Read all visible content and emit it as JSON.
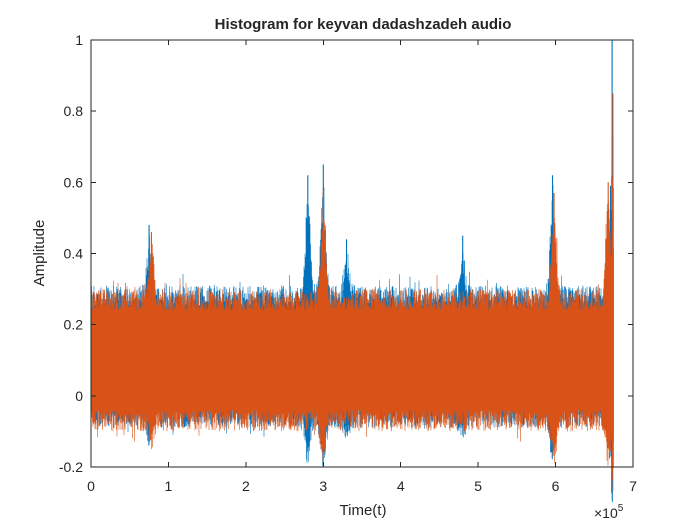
{
  "chart_data": {
    "type": "line",
    "title": "Histogram for keyvan dadashzadeh audio",
    "xlabel": "Time(t)",
    "ylabel": "Amplitude",
    "x_exponent_label": "×10",
    "x_exponent_power": "5",
    "xlim": [
      0,
      700000
    ],
    "ylim": [
      -0.2,
      1
    ],
    "x_ticks": [
      0,
      100000,
      200000,
      300000,
      400000,
      500000,
      600000,
      700000
    ],
    "x_tick_labels": [
      "0",
      "1",
      "2",
      "3",
      "4",
      "5",
      "6",
      "7"
    ],
    "y_ticks": [
      -0.2,
      0,
      0.2,
      0.4,
      0.6,
      0.8,
      1
    ],
    "y_tick_labels": [
      "-0.2",
      "0",
      "0.2",
      "0.4",
      "0.6",
      "0.8",
      "1"
    ],
    "grid": false,
    "legend": "none",
    "n_samples": 675000,
    "series": [
      {
        "color": "#0072BD",
        "band_low": -0.09,
        "band_high": 0.31,
        "peaks": [
          {
            "x": 75000,
            "y": 0.48
          },
          {
            "x": 280000,
            "y": 0.62
          },
          {
            "x": 300000,
            "y": 0.65
          },
          {
            "x": 330000,
            "y": 0.44
          },
          {
            "x": 480000,
            "y": 0.45
          },
          {
            "x": 596000,
            "y": 0.62
          },
          {
            "x": 671000,
            "y": 0.59
          },
          {
            "x": 673000,
            "y": 1.0
          }
        ]
      },
      {
        "color": "#D95319",
        "band_low": -0.1,
        "band_high": 0.3,
        "peaks": [
          {
            "x": 78000,
            "y": 0.46
          },
          {
            "x": 300000,
            "y": 0.58
          },
          {
            "x": 598000,
            "y": 0.57
          },
          {
            "x": 668000,
            "y": 0.6
          },
          {
            "x": 674000,
            "y": 0.85
          }
        ]
      }
    ]
  }
}
